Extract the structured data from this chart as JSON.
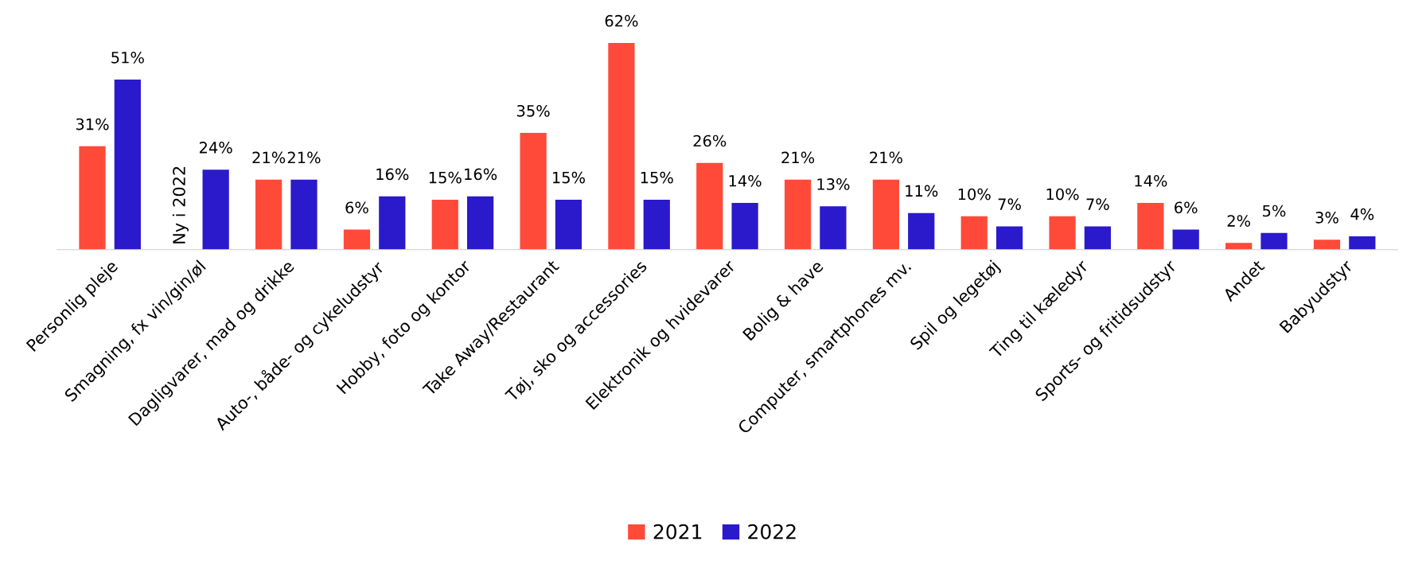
{
  "chart_data": {
    "type": "bar",
    "categories": [
      "Personlig pleje",
      "Smagning, fx vin/gin/øl",
      "Dagligvarer, mad og drikke",
      "Auto-, både- og cykeludstyr",
      "Hobby, foto og kontor",
      "Take Away/Restaurant",
      "Tøj, sko og accessories",
      "Elektronik og hvidevarer",
      "Bolig & have",
      "Computer, smartphones mv.",
      "Spil og legetøj",
      "Ting til kæledyr",
      "Sports- og fritidsudstyr",
      "Andet",
      "Babyudstyr"
    ],
    "series": [
      {
        "name": "2021",
        "color": "#ff4a3a",
        "values": [
          31,
          null,
          21,
          6,
          15,
          35,
          62,
          26,
          21,
          21,
          10,
          10,
          14,
          2,
          3
        ],
        "value_labels": [
          "31%",
          null,
          "21%",
          "6%",
          "15%",
          "35%",
          "62%",
          "26%",
          "21%",
          "21%",
          "10%",
          "10%",
          "14%",
          "2%",
          "3%"
        ]
      },
      {
        "name": "2022",
        "color": "#2a1acc",
        "values": [
          51,
          24,
          21,
          16,
          16,
          15,
          15,
          14,
          13,
          11,
          7,
          7,
          6,
          5,
          4
        ],
        "value_labels": [
          "51%",
          "24%",
          "21%",
          "16%",
          "16%",
          "15%",
          "15%",
          "14%",
          "13%",
          "11%",
          "7%",
          "7%",
          "6%",
          "5%",
          "4%"
        ]
      }
    ],
    "annotations": [
      {
        "text": "Ny i 2022",
        "x": "Smagning, fx vin/gin/øl"
      }
    ],
    "legend": "bottom",
    "grid": false
  }
}
